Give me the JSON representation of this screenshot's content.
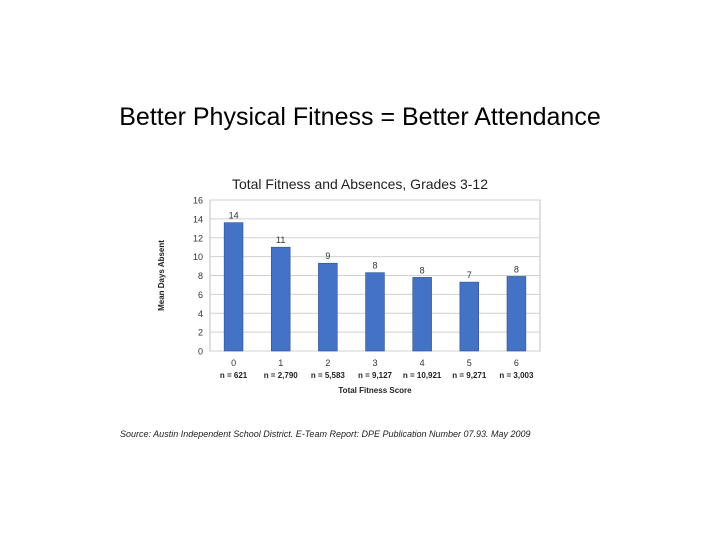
{
  "slide": {
    "title": "Better Physical Fitness = Better Attendance"
  },
  "chart_data": {
    "type": "bar",
    "title": "Total Fitness and Absences, Grades 3-12",
    "xlabel": "Total Fitness Score",
    "ylabel": "Mean Days Absent",
    "ylim": [
      0,
      16
    ],
    "yticks": [
      0,
      2,
      4,
      6,
      8,
      10,
      12,
      14,
      16
    ],
    "grid": true,
    "legend": "none",
    "bar_color": "#4472c4",
    "categories": [
      "0",
      "1",
      "2",
      "3",
      "4",
      "5",
      "6"
    ],
    "values": [
      13.6,
      11.0,
      9.3,
      8.3,
      7.8,
      7.3,
      7.9
    ],
    "data_labels": [
      "14",
      "11",
      "9",
      "8",
      "8",
      "7",
      "8"
    ],
    "sample_sizes": [
      "n = 621",
      "n = 2,790",
      "n = 5,583",
      "n = 9,127",
      "n = 10,921",
      "n = 9,271",
      "n = 3,003"
    ]
  },
  "source": {
    "text": "Source: Austin Independent School District. E-Team Report: DPE Publication Number 07.93. May 2009"
  }
}
